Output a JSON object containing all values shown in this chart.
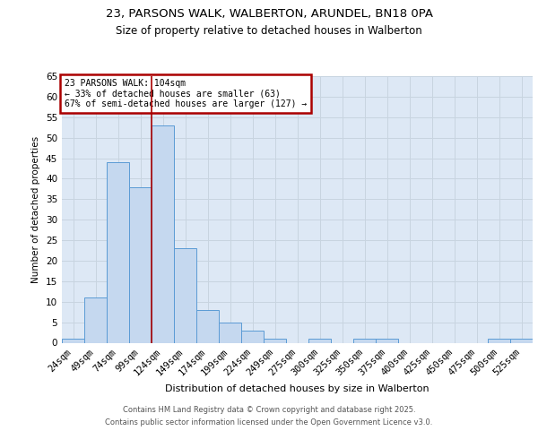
{
  "title_line1": "23, PARSONS WALK, WALBERTON, ARUNDEL, BN18 0PA",
  "title_line2": "Size of property relative to detached houses in Walberton",
  "xlabel": "Distribution of detached houses by size in Walberton",
  "ylabel": "Number of detached properties",
  "categories": [
    "24sqm",
    "49sqm",
    "74sqm",
    "99sqm",
    "124sqm",
    "149sqm",
    "174sqm",
    "199sqm",
    "224sqm",
    "249sqm",
    "275sqm",
    "300sqm",
    "325sqm",
    "350sqm",
    "375sqm",
    "400sqm",
    "425sqm",
    "450sqm",
    "475sqm",
    "500sqm",
    "525sqm"
  ],
  "values": [
    1,
    11,
    44,
    38,
    53,
    23,
    8,
    5,
    3,
    1,
    0,
    1,
    0,
    1,
    1,
    0,
    0,
    0,
    0,
    1,
    1
  ],
  "bar_color": "#c5d8ef",
  "bar_edge_color": "#5b9bd5",
  "grid_color": "#c8d4e0",
  "bg_color": "#dde8f5",
  "red_line_x": 3.5,
  "annotation_text": "23 PARSONS WALK: 104sqm\n← 33% of detached houses are smaller (63)\n67% of semi-detached houses are larger (127) →",
  "annotation_box_color": "#ffffff",
  "annotation_box_edge": "#aa0000",
  "ylim": [
    0,
    65
  ],
  "yticks": [
    0,
    5,
    10,
    15,
    20,
    25,
    30,
    35,
    40,
    45,
    50,
    55,
    60,
    65
  ],
  "footer_line1": "Contains HM Land Registry data © Crown copyright and database right 2025.",
  "footer_line2": "Contains public sector information licensed under the Open Government Licence v3.0."
}
